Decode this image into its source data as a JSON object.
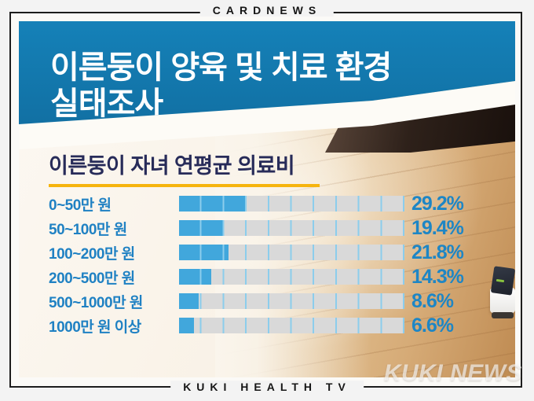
{
  "page": {
    "header_label": "CARDNEWS",
    "footer_label": "KUKI HEALTH TV",
    "watermark": "KUKI NEWS"
  },
  "banner": {
    "title_line1": "이른둥이 양육 및 치료 환경",
    "title_line2": "실태조사",
    "bg_color": "#1377ac",
    "text_color": "#ffffff"
  },
  "chart_data": {
    "type": "bar",
    "orientation": "horizontal",
    "title": "이른둥이 자녀 연평균 의료비",
    "categories": [
      "0~50만 원",
      "50~100만 원",
      "100~200만 원",
      "200~500만 원",
      "500~1000만 원",
      "1000만 원 이상"
    ],
    "values": [
      29.2,
      19.4,
      21.8,
      14.3,
      8.6,
      6.6
    ],
    "value_labels": [
      "29.2%",
      "19.4%",
      "21.8%",
      "14.3%",
      "8.6%",
      "6.6%"
    ],
    "xlim": [
      0,
      100
    ],
    "segments": 10,
    "legend": "none",
    "bar_color": "#41a7dc",
    "track_color": "#d9d9d9",
    "segment_tick_color": "#8ccdec",
    "category_label_color": "#1f81c3",
    "value_label_color": "#1e86c5",
    "title_color": "#272b59",
    "title_underline_color": "#f6b40e"
  }
}
